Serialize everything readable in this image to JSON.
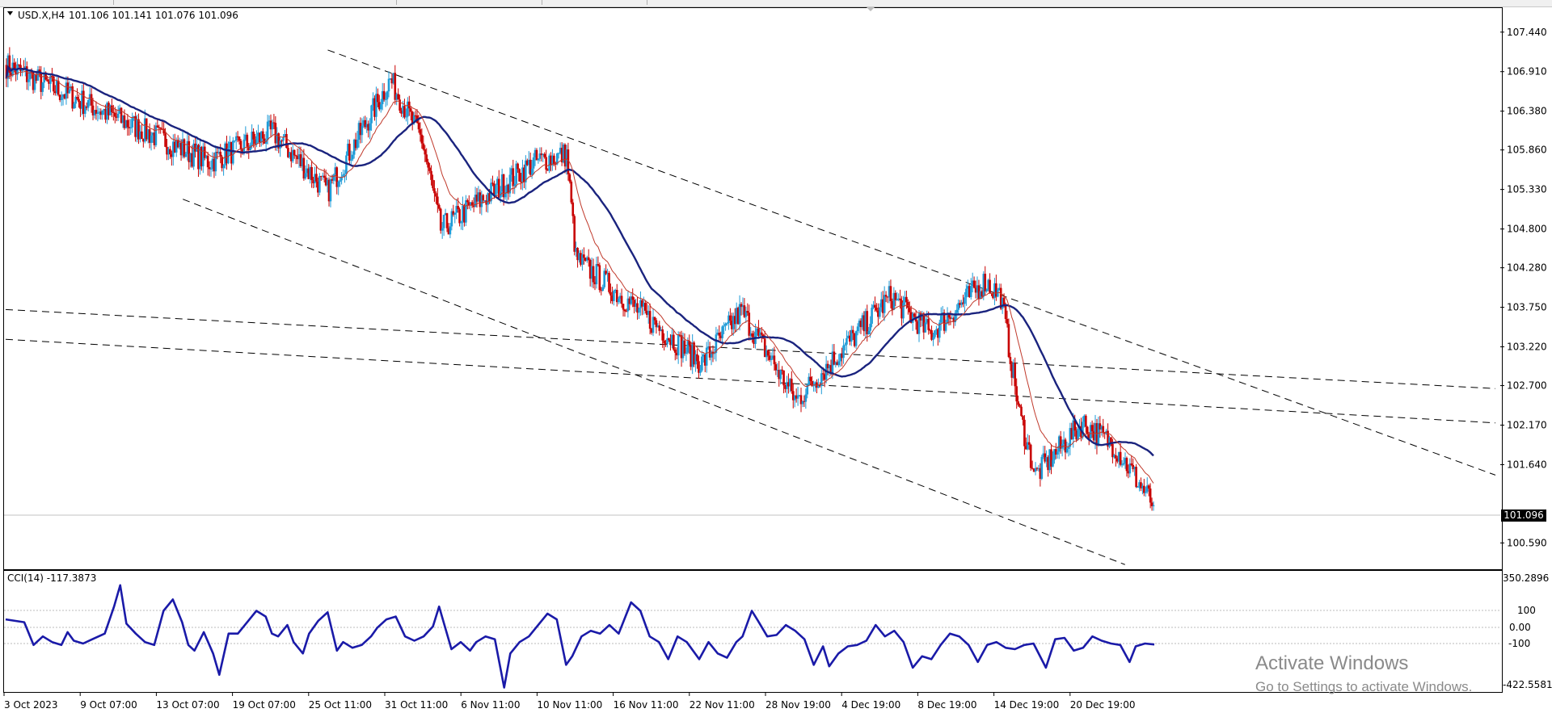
{
  "header": {
    "dropdown_icon": "triangle-down-icon",
    "symbol": "USD.X,H4",
    "ohlc": "101.106 101.141 101.076 101.096"
  },
  "indicator": {
    "label": "CCI(14) -117.3873",
    "levels": [
      "350.2896",
      "100",
      "0.00",
      "-100",
      "-422.5581"
    ]
  },
  "price_axis": {
    "labels": [
      "107.440",
      "106.910",
      "106.380",
      "105.860",
      "105.330",
      "104.800",
      "104.280",
      "103.750",
      "103.220",
      "102.700",
      "102.170",
      "101.640",
      "101.096",
      "100.590"
    ],
    "current_price": "101.096"
  },
  "time_axis": {
    "labels": [
      "3 Oct 2023",
      "9 Oct 07:00",
      "13 Oct 07:00",
      "19 Oct 07:00",
      "25 Oct 11:00",
      "31 Oct 11:00",
      "6 Nov 11:00",
      "10 Nov 11:00",
      "16 Nov 11:00",
      "22 Nov 11:00",
      "28 Nov 19:00",
      "4 Dec 19:00",
      "8 Dec 19:00",
      "14 Dec 19:00",
      "20 Dec 19:00"
    ]
  },
  "watermark": {
    "line1": "Activate Windows",
    "line2": "Go to Settings to activate Windows."
  },
  "colors": {
    "bull": "#1e9bd7",
    "bear": "#c80000",
    "ma_fast": "#c0392b",
    "ma_slow": "#1a237e",
    "cci": "#1a1aa8"
  },
  "chart_data": {
    "type": "candlestick",
    "symbol": "USD.X",
    "timeframe": "H4",
    "last_close": 101.096,
    "price_range": [
      100.4,
      107.6
    ],
    "segments": [
      [
        107.0,
        106.2,
        80
      ],
      [
        106.2,
        105.7,
        50
      ],
      [
        105.7,
        106.1,
        40
      ],
      [
        106.1,
        105.3,
        35
      ],
      [
        105.3,
        106.8,
        40
      ],
      [
        106.8,
        106.0,
        20
      ],
      [
        106.0,
        104.8,
        12
      ],
      [
        104.8,
        105.7,
        60
      ],
      [
        105.7,
        105.8,
        20
      ],
      [
        105.8,
        104.4,
        6
      ],
      [
        104.4,
        103.0,
        80
      ],
      [
        103.0,
        103.7,
        25
      ],
      [
        103.7,
        102.5,
        35
      ],
      [
        102.5,
        103.9,
        60
      ],
      [
        103.9,
        103.4,
        25
      ],
      [
        103.4,
        104.1,
        35
      ],
      [
        104.1,
        103.9,
        10
      ],
      [
        103.9,
        102.3,
        12
      ],
      [
        102.3,
        101.5,
        10
      ],
      [
        101.5,
        102.2,
        30
      ],
      [
        102.2,
        101.9,
        20
      ],
      [
        101.9,
        101.1,
        25
      ]
    ],
    "cci_points": [
      [
        0,
        60
      ],
      [
        30,
        40
      ],
      [
        45,
        -120
      ],
      [
        60,
        -60
      ],
      [
        75,
        -100
      ],
      [
        90,
        -120
      ],
      [
        100,
        -30
      ],
      [
        110,
        -90
      ],
      [
        125,
        -110
      ],
      [
        140,
        -80
      ],
      [
        150,
        -60
      ],
      [
        160,
        -40
      ],
      [
        175,
        150
      ],
      [
        185,
        300
      ],
      [
        195,
        30
      ],
      [
        210,
        -40
      ],
      [
        225,
        -100
      ],
      [
        240,
        -120
      ],
      [
        255,
        120
      ],
      [
        270,
        200
      ],
      [
        285,
        40
      ],
      [
        295,
        -120
      ],
      [
        305,
        -160
      ],
      [
        320,
        -30
      ],
      [
        335,
        -180
      ],
      [
        345,
        -330
      ],
      [
        360,
        -40
      ],
      [
        375,
        -40
      ],
      [
        390,
        40
      ],
      [
        405,
        120
      ],
      [
        420,
        80
      ],
      [
        430,
        -40
      ],
      [
        440,
        -60
      ],
      [
        455,
        20
      ],
      [
        465,
        -100
      ],
      [
        480,
        -180
      ],
      [
        490,
        -40
      ],
      [
        505,
        50
      ],
      [
        520,
        110
      ],
      [
        535,
        -160
      ],
      [
        545,
        -100
      ],
      [
        560,
        -140
      ],
      [
        575,
        -120
      ],
      [
        590,
        -60
      ],
      [
        600,
        0
      ],
      [
        615,
        60
      ],
      [
        630,
        80
      ],
      [
        645,
        -60
      ],
      [
        660,
        -90
      ],
      [
        675,
        -60
      ],
      [
        690,
        10
      ],
      [
        700,
        150
      ],
      [
        720,
        -150
      ],
      [
        735,
        -100
      ],
      [
        750,
        -160
      ],
      [
        760,
        -100
      ],
      [
        775,
        -60
      ],
      [
        790,
        -80
      ],
      [
        805,
        -420
      ],
      [
        815,
        -180
      ],
      [
        830,
        -100
      ],
      [
        845,
        -60
      ],
      [
        860,
        20
      ],
      [
        875,
        100
      ],
      [
        890,
        60
      ],
      [
        905,
        -260
      ],
      [
        915,
        -200
      ],
      [
        930,
        -60
      ],
      [
        945,
        -20
      ],
      [
        960,
        -40
      ],
      [
        975,
        20
      ],
      [
        990,
        -40
      ],
      [
        1010,
        180
      ],
      [
        1025,
        120
      ],
      [
        1040,
        -60
      ],
      [
        1055,
        -100
      ],
      [
        1070,
        -220
      ],
      [
        1085,
        -60
      ],
      [
        1100,
        -100
      ],
      [
        1120,
        -220
      ],
      [
        1135,
        -100
      ],
      [
        1150,
        -180
      ],
      [
        1165,
        -210
      ],
      [
        1180,
        -100
      ],
      [
        1190,
        -60
      ],
      [
        1205,
        120
      ],
      [
        1215,
        50
      ],
      [
        1230,
        -60
      ],
      [
        1245,
        -50
      ],
      [
        1260,
        20
      ],
      [
        1275,
        -20
      ],
      [
        1290,
        -80
      ],
      [
        1305,
        -260
      ],
      [
        1320,
        -130
      ],
      [
        1330,
        -270
      ],
      [
        1345,
        -180
      ],
      [
        1360,
        -130
      ],
      [
        1375,
        -120
      ],
      [
        1390,
        -90
      ],
      [
        1405,
        20
      ],
      [
        1420,
        -60
      ],
      [
        1435,
        -20
      ],
      [
        1450,
        -100
      ],
      [
        1465,
        -280
      ],
      [
        1480,
        -200
      ],
      [
        1495,
        -220
      ],
      [
        1510,
        -120
      ],
      [
        1525,
        -40
      ],
      [
        1540,
        -60
      ],
      [
        1555,
        -120
      ],
      [
        1570,
        -240
      ],
      [
        1585,
        -120
      ],
      [
        1600,
        -100
      ],
      [
        1615,
        -140
      ],
      [
        1630,
        -150
      ],
      [
        1645,
        -120
      ],
      [
        1660,
        -110
      ],
      [
        1680,
        -280
      ],
      [
        1695,
        -80
      ],
      [
        1710,
        -70
      ],
      [
        1725,
        -160
      ],
      [
        1740,
        -140
      ],
      [
        1755,
        -60
      ],
      [
        1770,
        -90
      ],
      [
        1785,
        -110
      ],
      [
        1800,
        -120
      ],
      [
        1815,
        -240
      ],
      [
        1825,
        -130
      ],
      [
        1840,
        -110
      ],
      [
        1855,
        -117
      ]
    ],
    "cci_range": [
      -422.5581,
      350.2896
    ],
    "trend_lines": [
      {
        "style": "dashed",
        "from": [
          400,
          107.2
        ],
        "to": [
          1850,
          101.5
        ]
      },
      {
        "style": "dashed",
        "from": [
          220,
          105.2
        ],
        "to": [
          1390,
          100.3
        ]
      },
      {
        "style": "dashed",
        "from": [
          0,
          103.72
        ],
        "to": [
          1850,
          102.66
        ]
      },
      {
        "style": "dashed",
        "from": [
          0,
          103.32
        ],
        "to": [
          1850,
          102.2
        ]
      }
    ]
  }
}
